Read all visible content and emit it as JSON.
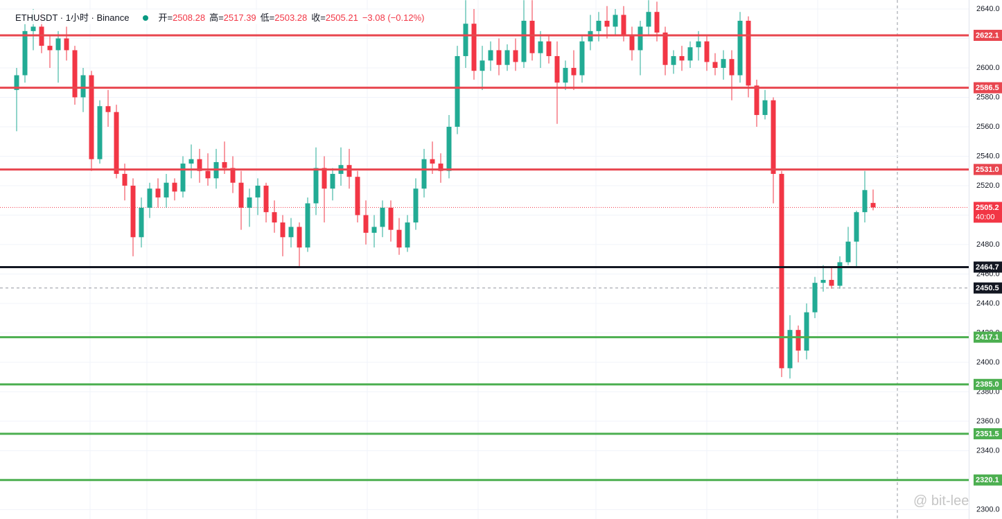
{
  "chart_data": {
    "type": "candlestick",
    "header": {
      "symbol": "ETHUSDT · 1小时 · Binance",
      "open_label": "开=",
      "open": "2508.28",
      "high_label": "高=",
      "high": "2517.39",
      "low_label": "低=",
      "low": "2503.28",
      "close_label": "收=",
      "close": "2505.21",
      "change": "−3.08 (−0.12%)"
    },
    "watermark": "@ bit-lee",
    "up_color": "#22ab94",
    "down_color": "#f23645",
    "ylim": [
      2293.6,
      2646.1
    ],
    "yticks": [
      {
        "value": 2300,
        "label": "2300.0"
      },
      {
        "value": 2320,
        "label": "2320.0"
      },
      {
        "value": 2340,
        "label": "2340.0"
      },
      {
        "value": 2360,
        "label": "2360.0"
      },
      {
        "value": 2380,
        "label": "2380.0"
      },
      {
        "value": 2400,
        "label": "2400.0"
      },
      {
        "value": 2420,
        "label": "2420.0"
      },
      {
        "value": 2440,
        "label": "2440.0"
      },
      {
        "value": 2460,
        "label": "2460.0"
      },
      {
        "value": 2480,
        "label": "2480.0"
      },
      {
        "value": 2500,
        "label": "2500.0"
      },
      {
        "value": 2520,
        "label": "2520.0"
      },
      {
        "value": 2540,
        "label": "2540.0"
      },
      {
        "value": 2560,
        "label": "2560.0"
      },
      {
        "value": 2580,
        "label": "2580.0"
      },
      {
        "value": 2600,
        "label": "2600.0"
      },
      {
        "value": 2620,
        "label": "2620.0"
      },
      {
        "value": 2640,
        "label": "2640.0"
      }
    ],
    "grid": true,
    "levels": [
      {
        "value": 2622.1,
        "label": "2622.1",
        "color": "#e8464f"
      },
      {
        "value": 2586.5,
        "label": "2586.5",
        "color": "#e8464f"
      },
      {
        "value": 2531.0,
        "label": "2531.0",
        "color": "#e8464f"
      },
      {
        "value": 2464.7,
        "label": "2464.7",
        "color": "#131722"
      },
      {
        "value": 2417.1,
        "label": "2417.1",
        "color": "#4caf50"
      },
      {
        "value": 2385.0,
        "label": "2385.0",
        "color": "#4caf50"
      },
      {
        "value": 2351.5,
        "label": "2351.5",
        "color": "#4caf50"
      },
      {
        "value": 2320.1,
        "label": "2320.1",
        "color": "#4caf50"
      }
    ],
    "last_price": {
      "value": 2505.21,
      "label": "2505.2",
      "countdown": "40:00",
      "color": "#f23645"
    },
    "crosshair": {
      "value": 2450.5,
      "label": "2450.5",
      "color": "#131722"
    },
    "ohlc": [
      [
        2585,
        2600,
        2557,
        2595
      ],
      [
        2595,
        2630,
        2590,
        2625
      ],
      [
        2625,
        2640,
        2612,
        2628
      ],
      [
        2628,
        2638,
        2610,
        2615
      ],
      [
        2615,
        2622,
        2600,
        2612
      ],
      [
        2612,
        2625,
        2590,
        2620
      ],
      [
        2620,
        2628,
        2605,
        2612
      ],
      [
        2612,
        2615,
        2575,
        2580
      ],
      [
        2580,
        2600,
        2570,
        2595
      ],
      [
        2595,
        2598,
        2530,
        2538
      ],
      [
        2538,
        2578,
        2535,
        2574
      ],
      [
        2574,
        2585,
        2560,
        2570
      ],
      [
        2570,
        2575,
        2525,
        2528
      ],
      [
        2528,
        2535,
        2510,
        2520
      ],
      [
        2520,
        2525,
        2472,
        2485
      ],
      [
        2485,
        2512,
        2478,
        2505
      ],
      [
        2505,
        2522,
        2498,
        2518
      ],
      [
        2518,
        2525,
        2505,
        2512
      ],
      [
        2512,
        2528,
        2505,
        2522
      ],
      [
        2522,
        2525,
        2510,
        2516
      ],
      [
        2516,
        2540,
        2512,
        2535
      ],
      [
        2535,
        2548,
        2525,
        2538
      ],
      [
        2538,
        2545,
        2522,
        2530
      ],
      [
        2530,
        2542,
        2520,
        2525
      ],
      [
        2525,
        2545,
        2518,
        2536
      ],
      [
        2536,
        2550,
        2528,
        2532
      ],
      [
        2532,
        2540,
        2515,
        2522
      ],
      [
        2522,
        2530,
        2490,
        2505
      ],
      [
        2505,
        2518,
        2492,
        2512
      ],
      [
        2512,
        2525,
        2500,
        2520
      ],
      [
        2520,
        2522,
        2495,
        2502
      ],
      [
        2502,
        2510,
        2488,
        2495
      ],
      [
        2495,
        2500,
        2472,
        2485
      ],
      [
        2485,
        2498,
        2478,
        2492
      ],
      [
        2492,
        2495,
        2465,
        2478
      ],
      [
        2478,
        2512,
        2475,
        2508
      ],
      [
        2508,
        2546,
        2500,
        2532
      ],
      [
        2532,
        2540,
        2495,
        2518
      ],
      [
        2518,
        2532,
        2510,
        2528
      ],
      [
        2528,
        2546,
        2520,
        2534
      ],
      [
        2534,
        2545,
        2518,
        2526
      ],
      [
        2526,
        2530,
        2495,
        2500
      ],
      [
        2500,
        2510,
        2480,
        2488
      ],
      [
        2488,
        2500,
        2478,
        2492
      ],
      [
        2492,
        2510,
        2485,
        2505
      ],
      [
        2505,
        2510,
        2482,
        2490
      ],
      [
        2490,
        2498,
        2473,
        2478
      ],
      [
        2478,
        2500,
        2475,
        2495
      ],
      [
        2495,
        2525,
        2490,
        2518
      ],
      [
        2518,
        2545,
        2512,
        2538
      ],
      [
        2538,
        2550,
        2528,
        2535
      ],
      [
        2535,
        2542,
        2522,
        2530
      ],
      [
        2530,
        2568,
        2525,
        2560
      ],
      [
        2560,
        2615,
        2555,
        2608
      ],
      [
        2608,
        2646,
        2600,
        2630
      ],
      [
        2630,
        2640,
        2592,
        2598
      ],
      [
        2598,
        2615,
        2585,
        2605
      ],
      [
        2605,
        2618,
        2598,
        2612
      ],
      [
        2612,
        2620,
        2595,
        2602
      ],
      [
        2602,
        2616,
        2598,
        2612
      ],
      [
        2612,
        2620,
        2598,
        2604
      ],
      [
        2604,
        2646,
        2600,
        2632
      ],
      [
        2632,
        2646,
        2605,
        2610
      ],
      [
        2610,
        2625,
        2600,
        2618
      ],
      [
        2618,
        2622,
        2603,
        2608
      ],
      [
        2608,
        2618,
        2562,
        2590
      ],
      [
        2590,
        2605,
        2585,
        2600
      ],
      [
        2600,
        2612,
        2585,
        2595
      ],
      [
        2595,
        2622,
        2590,
        2618
      ],
      [
        2618,
        2636,
        2612,
        2625
      ],
      [
        2625,
        2638,
        2618,
        2632
      ],
      [
        2632,
        2642,
        2620,
        2628
      ],
      [
        2628,
        2640,
        2622,
        2636
      ],
      [
        2636,
        2642,
        2618,
        2622
      ],
      [
        2622,
        2628,
        2605,
        2612
      ],
      [
        2612,
        2632,
        2595,
        2628
      ],
      [
        2628,
        2646,
        2622,
        2638
      ],
      [
        2638,
        2645,
        2618,
        2624
      ],
      [
        2624,
        2628,
        2595,
        2602
      ],
      [
        2602,
        2612,
        2596,
        2608
      ],
      [
        2608,
        2615,
        2598,
        2605
      ],
      [
        2605,
        2618,
        2600,
        2614
      ],
      [
        2614,
        2625,
        2605,
        2618
      ],
      [
        2618,
        2622,
        2598,
        2604
      ],
      [
        2604,
        2610,
        2595,
        2600
      ],
      [
        2600,
        2612,
        2592,
        2606
      ],
      [
        2606,
        2612,
        2578,
        2595
      ],
      [
        2595,
        2638,
        2590,
        2632
      ],
      [
        2632,
        2635,
        2580,
        2588
      ],
      [
        2588,
        2592,
        2560,
        2568
      ],
      [
        2568,
        2585,
        2565,
        2578
      ],
      [
        2578,
        2580,
        2508,
        2528
      ],
      [
        2528,
        2530,
        2390,
        2396
      ],
      [
        2396,
        2432,
        2389,
        2422
      ],
      [
        2422,
        2425,
        2400,
        2408
      ],
      [
        2408,
        2440,
        2402,
        2434
      ],
      [
        2434,
        2458,
        2430,
        2454
      ],
      [
        2454,
        2466,
        2448,
        2456
      ],
      [
        2456,
        2465,
        2450,
        2452
      ],
      [
        2452,
        2472,
        2450,
        2468
      ],
      [
        2468,
        2492,
        2466,
        2482
      ],
      [
        2482,
        2503,
        2465,
        2502
      ],
      [
        2502,
        2530,
        2495,
        2517
      ],
      [
        2508.28,
        2517.39,
        2503.28,
        2505.21
      ]
    ]
  }
}
